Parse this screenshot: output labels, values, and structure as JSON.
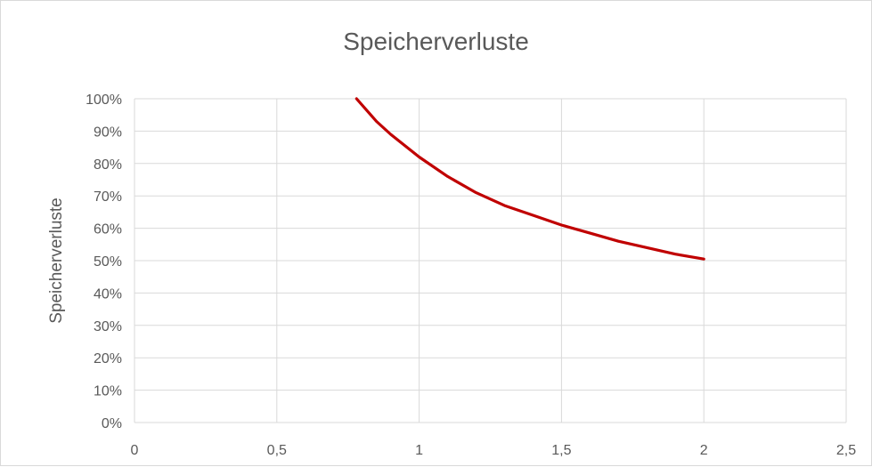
{
  "chart_data": {
    "type": "line",
    "title": "Speicherverluste",
    "xlabel": "",
    "ylabel": "Speicherverluste",
    "xlim": [
      0,
      2.5
    ],
    "ylim": [
      0,
      1
    ],
    "x_ticks": [
      "0",
      "0,5",
      "1",
      "1,5",
      "2",
      "2,5"
    ],
    "y_ticks": [
      "0%",
      "10%",
      "20%",
      "30%",
      "40%",
      "50%",
      "60%",
      "70%",
      "80%",
      "90%",
      "100%"
    ],
    "grid": true,
    "series": [
      {
        "color": "#c00000",
        "x": [
          0.78,
          0.85,
          0.9,
          1.0,
          1.1,
          1.2,
          1.3,
          1.4,
          1.5,
          1.6,
          1.7,
          1.8,
          1.9,
          2.0
        ],
        "y": [
          1.0,
          0.93,
          0.89,
          0.82,
          0.76,
          0.71,
          0.67,
          0.64,
          0.61,
          0.585,
          0.56,
          0.54,
          0.52,
          0.505
        ]
      }
    ]
  }
}
